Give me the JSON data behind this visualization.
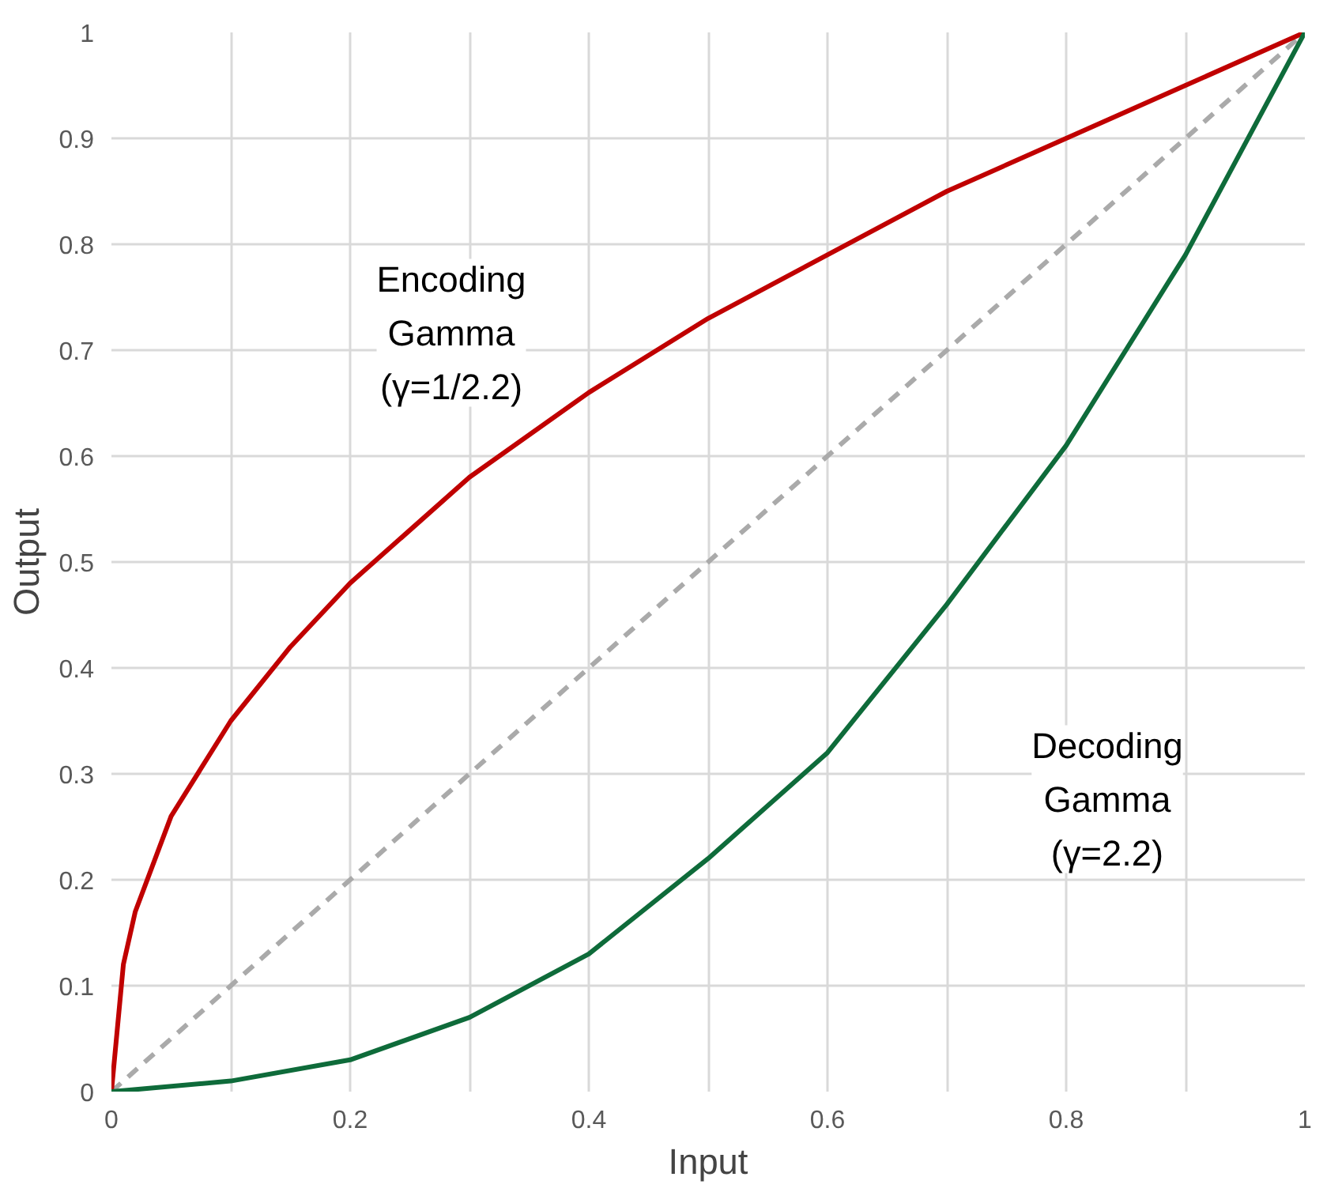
{
  "chart_data": {
    "type": "line",
    "xlabel": "Input",
    "ylabel": "Output",
    "xlim": [
      0,
      1
    ],
    "ylim": [
      0,
      1
    ],
    "xticks": [
      0,
      {
        "value": 0.1,
        "label": null
      },
      0.2,
      {
        "value": 0.3,
        "label": null
      },
      0.4,
      {
        "value": 0.5,
        "label": null
      },
      0.6,
      {
        "value": 0.7,
        "label": null
      },
      0.8,
      {
        "value": 0.9,
        "label": null
      },
      1
    ],
    "yticks": [
      0,
      0.1,
      0.2,
      0.3,
      0.4,
      0.5,
      0.6,
      0.7,
      0.8,
      0.9,
      1
    ],
    "grid": true,
    "series": [
      {
        "color": "#aaaaaa",
        "line_style": "dashed",
        "x": [
          0,
          1
        ],
        "values": [
          0,
          1
        ]
      },
      {
        "color": "#c00000",
        "line_style": "solid",
        "x": [
          0,
          0.01,
          0.02,
          0.05,
          0.1,
          0.15,
          0.2,
          0.3,
          0.4,
          0.5,
          0.6,
          0.7,
          0.8,
          0.9,
          1
        ],
        "values": [
          0,
          0.12,
          0.17,
          0.26,
          0.35,
          0.42,
          0.48,
          0.58,
          0.66,
          0.73,
          0.79,
          0.85,
          0.9,
          0.95,
          1
        ]
      },
      {
        "color": "#0e6b3a",
        "line_style": "solid",
        "x": [
          0,
          0.1,
          0.2,
          0.3,
          0.4,
          0.5,
          0.6,
          0.7,
          0.8,
          0.9,
          1
        ],
        "values": [
          0,
          0.01,
          0.03,
          0.07,
          0.13,
          0.22,
          0.32,
          0.46,
          0.61,
          0.79,
          1
        ]
      }
    ],
    "annotations": [
      "Encoding\nGamma\n(γ=1/2.2)",
      "Decoding\nGamma\n(γ=2.2)"
    ]
  }
}
